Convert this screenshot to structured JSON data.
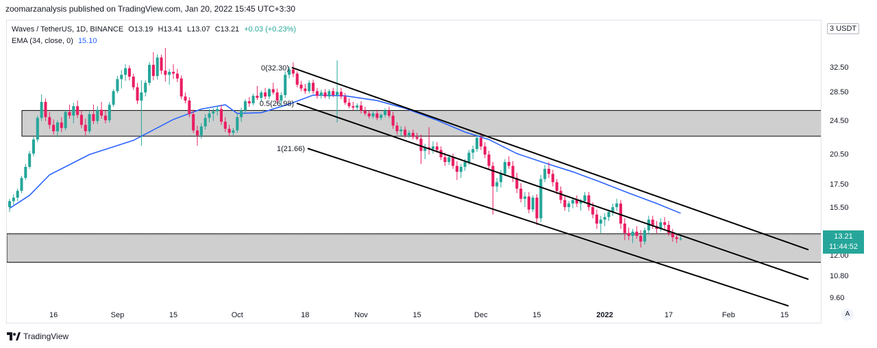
{
  "header": {
    "published_by": "zoomarzanalysis published on TradingView.com, Jan 20, 2022 15:45 UTC+3:30"
  },
  "legend": {
    "symbol": "Waves / TetherUS, 1D, BINANCE",
    "open": "O13.19",
    "high": "H13.41",
    "low": "L13.07",
    "close": "C13.21",
    "change": "+0.03 (+0.23%)",
    "ema_label": "EMA (34, close, 0)",
    "ema_value": "15.10"
  },
  "price_axis": {
    "currency": "USDT",
    "currency_prefix": "3",
    "ticks": [
      "32.50",
      "28.50",
      "24.50",
      "20.50",
      "17.50",
      "15.50",
      "12.00",
      "10.80",
      "9.60"
    ],
    "partial_tick": "13.50",
    "last_price": "13.21",
    "countdown": "11:44:52"
  },
  "time_axis": {
    "ticks": [
      "16",
      "Sep",
      "15",
      "Oct",
      "18",
      "Nov",
      "15",
      "Dec",
      "15",
      "2022",
      "17",
      "Feb",
      "15"
    ],
    "bold": [
      "2022"
    ],
    "auto_button": "A"
  },
  "fib": {
    "l0": "0(32.30)",
    "l05": "0.5(26.98)",
    "l1": "1(21.66)"
  },
  "brand": {
    "name": "TradingView"
  },
  "colors": {
    "up": "#26a69a",
    "down": "#ef5350",
    "candle_up": "#26a69a",
    "candle_down": "#e91e63",
    "ema": "#2962ff",
    "zone": "#cccccc"
  },
  "chart_data": {
    "type": "candlestick",
    "title": "Waves / TetherUS, 1D, BINANCE",
    "y_scale": "log",
    "ylim": [
      9.2,
      37.0
    ],
    "x_range": [
      "2021-08-05",
      "2022-02-21"
    ],
    "zones": [
      {
        "from": 22.7,
        "to": 26.0
      },
      {
        "from": 11.65,
        "to": 13.55
      }
    ],
    "channel_lines": [
      {
        "name": "0",
        "from": [
          "2021-10-16",
          32.3
        ],
        "to": [
          "2022-02-21",
          12.45
        ]
      },
      {
        "name": "0.5",
        "from": [
          "2021-10-16",
          26.98
        ],
        "to": [
          "2022-02-21",
          10.65
        ]
      },
      {
        "name": "1",
        "from": [
          "2021-10-16",
          21.66
        ],
        "to": [
          "2022-02-16",
          9.25
        ]
      }
    ],
    "ema": [
      [
        "2021-08-05",
        15.5
      ],
      [
        "2021-08-10",
        16.6
      ],
      [
        "2021-08-15",
        18.5
      ],
      [
        "2021-08-25",
        20.6
      ],
      [
        "2021-09-05",
        22.2
      ],
      [
        "2021-09-15",
        24.8
      ],
      [
        "2021-09-22",
        26.2
      ],
      [
        "2021-09-28",
        26.8
      ],
      [
        "2021-10-01",
        25.6
      ],
      [
        "2021-10-07",
        25.7
      ],
      [
        "2021-10-14",
        26.9
      ],
      [
        "2021-10-20",
        28.2
      ],
      [
        "2021-10-28",
        28.1
      ],
      [
        "2021-11-05",
        27.4
      ],
      [
        "2021-11-12",
        26.3
      ],
      [
        "2021-11-20",
        24.7
      ],
      [
        "2021-11-27",
        23.2
      ],
      [
        "2021-12-03",
        22.3
      ],
      [
        "2021-12-10",
        20.7
      ],
      [
        "2021-12-17",
        19.7
      ],
      [
        "2021-12-24",
        18.8
      ],
      [
        "2021-12-31",
        17.8
      ],
      [
        "2022-01-07",
        16.8
      ],
      [
        "2022-01-14",
        15.9
      ],
      [
        "2022-01-20",
        15.1
      ]
    ],
    "candles": [
      [
        "2021-08-05",
        15.6,
        16.3,
        15.2,
        16.1
      ],
      [
        "2021-08-06",
        16.1,
        16.7,
        15.8,
        16.4
      ],
      [
        "2021-08-07",
        16.4,
        17.2,
        16.1,
        17.0
      ],
      [
        "2021-08-08",
        17.0,
        18.4,
        16.8,
        18.2
      ],
      [
        "2021-08-09",
        18.2,
        19.6,
        18.0,
        19.3
      ],
      [
        "2021-08-10",
        19.3,
        21.0,
        19.1,
        20.7
      ],
      [
        "2021-08-11",
        20.7,
        22.6,
        20.4,
        22.3
      ],
      [
        "2021-08-12",
        22.3,
        25.3,
        22.0,
        25.0
      ],
      [
        "2021-08-13",
        25.0,
        28.3,
        24.6,
        27.2
      ],
      [
        "2021-08-14",
        27.2,
        27.7,
        24.6,
        25.1
      ],
      [
        "2021-08-15",
        25.1,
        25.8,
        23.6,
        24.1
      ],
      [
        "2021-08-16",
        24.1,
        24.8,
        22.9,
        23.3
      ],
      [
        "2021-08-17",
        23.3,
        24.7,
        22.6,
        24.4
      ],
      [
        "2021-08-18",
        24.4,
        25.1,
        23.2,
        23.7
      ],
      [
        "2021-08-19",
        23.7,
        26.1,
        23.4,
        25.8
      ],
      [
        "2021-08-20",
        25.8,
        26.8,
        24.9,
        25.3
      ],
      [
        "2021-08-21",
        25.3,
        27.1,
        24.3,
        26.6
      ],
      [
        "2021-08-22",
        26.6,
        27.4,
        25.0,
        25.4
      ],
      [
        "2021-08-23",
        25.4,
        26.0,
        23.7,
        24.1
      ],
      [
        "2021-08-24",
        24.1,
        24.9,
        22.8,
        23.3
      ],
      [
        "2021-08-25",
        23.3,
        25.9,
        23.0,
        25.5
      ],
      [
        "2021-08-26",
        25.5,
        26.8,
        24.2,
        24.6
      ],
      [
        "2021-08-27",
        24.6,
        26.6,
        24.2,
        26.1
      ],
      [
        "2021-08-28",
        26.1,
        27.2,
        24.9,
        25.3
      ],
      [
        "2021-08-29",
        25.3,
        26.1,
        24.3,
        24.7
      ],
      [
        "2021-08-30",
        24.7,
        27.2,
        24.4,
        26.8
      ],
      [
        "2021-08-31",
        26.8,
        29.1,
        26.5,
        28.8
      ],
      [
        "2021-09-01",
        28.8,
        31.2,
        28.5,
        30.7
      ],
      [
        "2021-09-02",
        30.7,
        32.2,
        29.2,
        31.4
      ],
      [
        "2021-09-03",
        31.4,
        33.2,
        30.4,
        32.5
      ],
      [
        "2021-09-04",
        32.5,
        33.0,
        30.5,
        31.1
      ],
      [
        "2021-09-05",
        31.1,
        31.6,
        29.0,
        29.4
      ],
      [
        "2021-09-06",
        29.4,
        30.1,
        26.9,
        27.4
      ],
      [
        "2021-09-07",
        27.4,
        30.5,
        21.6,
        28.6
      ],
      [
        "2021-09-08",
        28.6,
        30.5,
        28.0,
        30.1
      ],
      [
        "2021-09-09",
        30.1,
        33.6,
        29.7,
        33.1
      ],
      [
        "2021-09-10",
        33.1,
        35.4,
        30.5,
        31.2
      ],
      [
        "2021-09-11",
        31.2,
        35.0,
        30.6,
        34.4
      ],
      [
        "2021-09-12",
        34.4,
        34.9,
        31.5,
        32.1
      ],
      [
        "2021-09-13",
        32.1,
        36.2,
        30.3,
        31.4
      ],
      [
        "2021-09-14",
        31.4,
        32.4,
        29.8,
        31.9
      ],
      [
        "2021-09-15",
        31.9,
        33.2,
        30.7,
        31.6
      ],
      [
        "2021-09-16",
        31.6,
        32.4,
        30.2,
        30.8
      ],
      [
        "2021-09-17",
        30.8,
        31.3,
        27.6,
        28.0
      ],
      [
        "2021-09-18",
        28.0,
        28.6,
        27.0,
        27.4
      ],
      [
        "2021-09-19",
        27.4,
        27.9,
        25.1,
        25.5
      ],
      [
        "2021-09-20",
        25.5,
        26.1,
        23.1,
        23.4
      ],
      [
        "2021-09-21",
        23.4,
        24.0,
        21.6,
        22.8
      ],
      [
        "2021-09-22",
        22.8,
        24.3,
        22.4,
        23.9
      ],
      [
        "2021-09-23",
        23.9,
        25.5,
        23.5,
        25.0
      ],
      [
        "2021-09-24",
        25.0,
        26.2,
        24.4,
        25.6
      ],
      [
        "2021-09-25",
        25.6,
        26.3,
        24.6,
        25.9
      ],
      [
        "2021-09-26",
        25.9,
        26.6,
        25.3,
        26.2
      ],
      [
        "2021-09-27",
        26.2,
        26.8,
        24.1,
        24.5
      ],
      [
        "2021-09-28",
        24.5,
        25.1,
        23.2,
        23.6
      ],
      [
        "2021-09-29",
        23.6,
        24.1,
        22.7,
        23.1
      ],
      [
        "2021-09-30",
        23.1,
        23.7,
        22.8,
        23.4
      ],
      [
        "2021-10-01",
        23.4,
        25.6,
        23.1,
        25.1
      ],
      [
        "2021-10-02",
        25.1,
        26.4,
        24.5,
        26.0
      ],
      [
        "2021-10-03",
        26.0,
        27.6,
        25.6,
        27.3
      ],
      [
        "2021-10-04",
        27.3,
        27.9,
        26.5,
        27.0
      ],
      [
        "2021-10-05",
        27.0,
        28.4,
        26.7,
        28.1
      ],
      [
        "2021-10-06",
        28.1,
        29.6,
        27.5,
        27.8
      ],
      [
        "2021-10-07",
        27.8,
        28.9,
        27.2,
        28.6
      ],
      [
        "2021-10-08",
        28.6,
        29.3,
        27.6,
        28.0
      ],
      [
        "2021-10-09",
        28.0,
        29.3,
        27.6,
        29.1
      ],
      [
        "2021-10-10",
        29.1,
        30.1,
        28.3,
        28.6
      ],
      [
        "2021-10-11",
        28.6,
        29.2,
        27.0,
        27.4
      ],
      [
        "2021-10-12",
        27.4,
        28.6,
        26.5,
        28.2
      ],
      [
        "2021-10-13",
        28.2,
        32.0,
        27.8,
        31.4
      ],
      [
        "2021-10-14",
        31.4,
        32.8,
        30.8,
        32.3
      ],
      [
        "2021-10-15",
        32.3,
        33.5,
        31.0,
        31.6
      ],
      [
        "2021-10-16",
        31.6,
        32.0,
        29.4,
        29.8
      ],
      [
        "2021-10-17",
        29.8,
        30.4,
        28.8,
        29.2
      ],
      [
        "2021-10-18",
        29.2,
        29.9,
        28.4,
        28.8
      ],
      [
        "2021-10-19",
        28.8,
        30.5,
        28.5,
        30.1
      ],
      [
        "2021-10-20",
        30.1,
        30.6,
        28.4,
        28.8
      ],
      [
        "2021-10-21",
        28.8,
        29.3,
        27.7,
        28.1
      ],
      [
        "2021-10-22",
        28.1,
        29.0,
        27.7,
        28.6
      ],
      [
        "2021-10-23",
        28.6,
        29.1,
        27.7,
        28.0
      ],
      [
        "2021-10-24",
        28.0,
        29.1,
        27.6,
        28.8
      ],
      [
        "2021-10-25",
        28.8,
        29.3,
        27.9,
        28.2
      ],
      [
        "2021-10-26",
        28.2,
        33.9,
        24.4,
        28.7
      ],
      [
        "2021-10-27",
        28.7,
        29.3,
        27.6,
        28.0
      ],
      [
        "2021-10-28",
        28.0,
        28.5,
        26.8,
        27.1
      ],
      [
        "2021-10-29",
        27.1,
        27.7,
        26.3,
        26.6
      ],
      [
        "2021-10-30",
        26.6,
        27.2,
        26.0,
        26.4
      ],
      [
        "2021-10-31",
        26.4,
        27.0,
        25.9,
        26.7
      ],
      [
        "2021-11-01",
        26.7,
        27.3,
        25.6,
        26.0
      ],
      [
        "2021-11-02",
        26.0,
        26.5,
        25.3,
        25.6
      ],
      [
        "2021-11-03",
        25.6,
        26.0,
        24.9,
        25.2
      ],
      [
        "2021-11-04",
        25.2,
        25.9,
        24.9,
        25.6
      ],
      [
        "2021-11-05",
        25.6,
        26.1,
        24.7,
        25.0
      ],
      [
        "2021-11-06",
        25.0,
        25.6,
        24.7,
        25.4
      ],
      [
        "2021-11-07",
        25.4,
        26.3,
        25.1,
        26.0
      ],
      [
        "2021-11-08",
        26.0,
        26.5,
        25.0,
        25.3
      ],
      [
        "2021-11-09",
        25.3,
        25.8,
        23.6,
        24.0
      ],
      [
        "2021-11-10",
        24.0,
        24.4,
        22.9,
        23.3
      ],
      [
        "2021-11-11",
        23.3,
        23.9,
        22.7,
        23.5
      ],
      [
        "2021-11-12",
        23.5,
        23.9,
        22.5,
        22.8
      ],
      [
        "2021-11-13",
        22.8,
        23.4,
        22.5,
        23.1
      ],
      [
        "2021-11-14",
        23.1,
        23.5,
        22.3,
        22.6
      ],
      [
        "2021-11-15",
        22.6,
        23.1,
        22.2,
        22.4
      ],
      [
        "2021-11-16",
        22.4,
        22.9,
        19.6,
        21.0
      ],
      [
        "2021-11-17",
        21.0,
        21.8,
        20.1,
        21.4
      ],
      [
        "2021-11-18",
        21.4,
        23.8,
        20.6,
        21.2
      ],
      [
        "2021-11-19",
        21.2,
        22.1,
        20.7,
        21.5
      ],
      [
        "2021-11-20",
        21.5,
        22.0,
        20.8,
        21.1
      ],
      [
        "2021-11-21",
        21.1,
        21.5,
        20.0,
        20.3
      ],
      [
        "2021-11-22",
        20.3,
        20.8,
        19.4,
        19.8
      ],
      [
        "2021-11-23",
        19.8,
        20.6,
        19.5,
        20.3
      ],
      [
        "2021-11-24",
        20.3,
        20.7,
        19.1,
        19.4
      ],
      [
        "2021-11-25",
        19.4,
        19.9,
        18.0,
        18.8
      ],
      [
        "2021-11-26",
        18.8,
        19.6,
        18.2,
        19.3
      ],
      [
        "2021-11-27",
        19.3,
        20.1,
        18.9,
        19.8
      ],
      [
        "2021-11-28",
        19.8,
        21.1,
        19.5,
        20.8
      ],
      [
        "2021-11-29",
        20.8,
        21.6,
        20.1,
        21.2
      ],
      [
        "2021-11-30",
        21.2,
        22.9,
        20.9,
        22.5
      ],
      [
        "2021-12-01",
        22.5,
        23.1,
        21.1,
        21.5
      ],
      [
        "2021-12-02",
        21.5,
        22.0,
        20.2,
        20.6
      ],
      [
        "2021-12-03",
        20.6,
        21.0,
        19.1,
        19.4
      ],
      [
        "2021-12-04",
        19.4,
        19.8,
        15.0,
        17.4
      ],
      [
        "2021-12-05",
        17.4,
        18.2,
        16.9,
        17.8
      ],
      [
        "2021-12-06",
        17.8,
        19.0,
        17.3,
        18.6
      ],
      [
        "2021-12-07",
        18.6,
        20.1,
        18.4,
        19.8
      ],
      [
        "2021-12-08",
        19.8,
        20.4,
        19.1,
        19.4
      ],
      [
        "2021-12-09",
        19.4,
        19.9,
        17.8,
        18.2
      ],
      [
        "2021-12-10",
        18.2,
        18.7,
        16.8,
        17.2
      ],
      [
        "2021-12-11",
        17.2,
        17.7,
        16.0,
        16.3
      ],
      [
        "2021-12-12",
        16.3,
        16.9,
        15.6,
        16.5
      ],
      [
        "2021-12-13",
        16.5,
        16.9,
        15.1,
        15.4
      ],
      [
        "2021-12-14",
        15.4,
        16.6,
        15.2,
        16.4
      ],
      [
        "2021-12-15",
        16.4,
        16.7,
        14.2,
        14.7
      ],
      [
        "2021-12-16",
        14.7,
        18.5,
        14.4,
        18.1
      ],
      [
        "2021-12-17",
        18.1,
        19.5,
        17.8,
        19.1
      ],
      [
        "2021-12-18",
        19.1,
        19.8,
        18.2,
        18.6
      ],
      [
        "2021-12-19",
        18.6,
        19.0,
        17.4,
        17.8
      ],
      [
        "2021-12-20",
        17.8,
        18.1,
        16.7,
        17.0
      ],
      [
        "2021-12-21",
        17.0,
        17.4,
        15.9,
        16.2
      ],
      [
        "2021-12-22",
        16.2,
        16.6,
        15.3,
        15.6
      ],
      [
        "2021-12-23",
        15.6,
        16.1,
        15.2,
        15.9
      ],
      [
        "2021-12-24",
        15.9,
        16.3,
        15.5,
        16.2
      ],
      [
        "2021-12-25",
        16.2,
        16.6,
        15.6,
        15.9
      ],
      [
        "2021-12-26",
        15.9,
        16.3,
        15.3,
        16.1
      ],
      [
        "2021-12-27",
        16.1,
        16.9,
        15.9,
        16.6
      ],
      [
        "2021-12-28",
        16.6,
        16.9,
        15.3,
        15.6
      ],
      [
        "2021-12-29",
        15.6,
        16.0,
        14.7,
        15.0
      ],
      [
        "2021-12-30",
        15.0,
        15.4,
        13.9,
        14.3
      ],
      [
        "2021-12-31",
        14.3,
        14.9,
        13.6,
        14.6
      ],
      [
        "2022-01-01",
        14.6,
        15.1,
        14.1,
        14.8
      ],
      [
        "2022-01-02",
        14.8,
        15.4,
        14.5,
        15.2
      ],
      [
        "2022-01-03",
        15.2,
        15.9,
        14.9,
        15.6
      ],
      [
        "2022-01-04",
        15.6,
        16.3,
        15.3,
        15.9
      ],
      [
        "2022-01-05",
        15.9,
        16.2,
        13.9,
        14.3
      ],
      [
        "2022-01-06",
        14.3,
        14.7,
        13.1,
        13.6
      ],
      [
        "2022-01-07",
        13.6,
        14.0,
        13.1,
        13.4
      ],
      [
        "2022-01-08",
        13.4,
        13.9,
        12.9,
        13.7
      ],
      [
        "2022-01-09",
        13.7,
        14.1,
        13.2,
        13.4
      ],
      [
        "2022-01-10",
        13.4,
        13.8,
        12.6,
        13.0
      ],
      [
        "2022-01-11",
        13.0,
        14.0,
        12.8,
        13.8
      ],
      [
        "2022-01-12",
        13.8,
        14.9,
        13.5,
        14.6
      ],
      [
        "2022-01-13",
        14.6,
        14.9,
        13.9,
        14.1
      ],
      [
        "2022-01-14",
        14.1,
        14.5,
        13.6,
        13.9
      ],
      [
        "2022-01-15",
        13.9,
        14.7,
        13.7,
        14.4
      ],
      [
        "2022-01-16",
        14.4,
        14.8,
        13.9,
        14.2
      ],
      [
        "2022-01-17",
        14.2,
        14.5,
        13.4,
        13.6
      ],
      [
        "2022-01-18",
        13.6,
        13.9,
        13.0,
        13.3
      ],
      [
        "2022-01-19",
        13.3,
        13.5,
        12.9,
        13.18
      ],
      [
        "2022-01-20",
        13.19,
        13.41,
        13.07,
        13.21
      ]
    ]
  }
}
